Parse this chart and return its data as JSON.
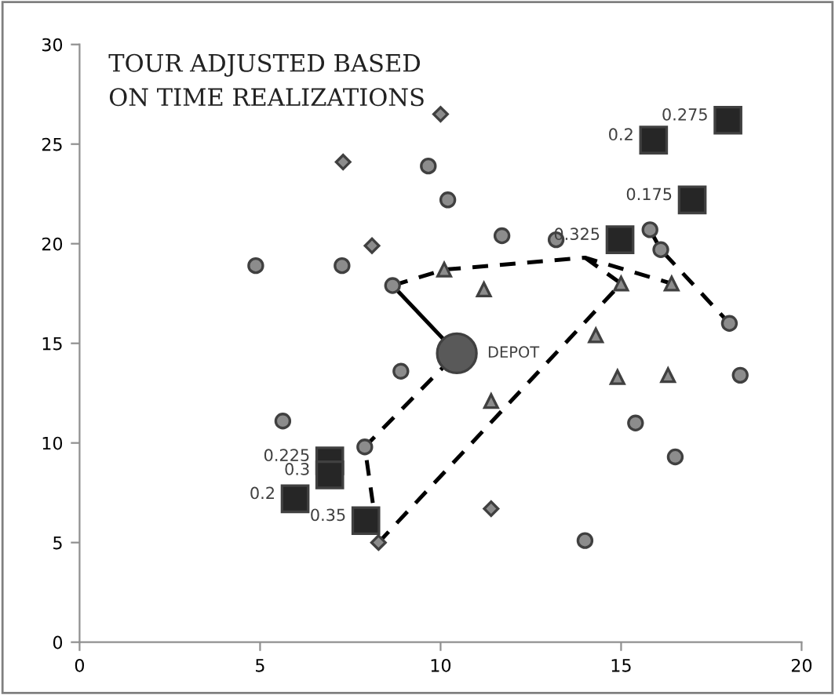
{
  "chart_data": {
    "type": "scatter",
    "title": "TOUR ADJUSTED BASED\nON TIME REALIZATIONS",
    "xlim": [
      0,
      20
    ],
    "xticks": [
      0,
      5,
      10,
      15,
      20
    ],
    "ylim": [
      0,
      30
    ],
    "yticks": [
      0,
      5,
      10,
      15,
      20,
      25,
      30
    ],
    "grid": false,
    "legend": false,
    "series": [
      {
        "type": "line",
        "color": "#000000",
        "line_style": "solid",
        "marker": "none",
        "x": [
          10.45,
          8.67
        ],
        "values": [
          14.5,
          17.9
        ]
      },
      {
        "type": "line",
        "color": "#000000",
        "line_style": "dashed",
        "marker": "none",
        "x": [
          8.67,
          10.1,
          14.0,
          16.4
        ],
        "values": [
          17.9,
          18.7,
          19.3,
          18.0
        ]
      },
      {
        "type": "line",
        "color": "#000000",
        "line_style": "dashed",
        "marker": "none",
        "x": [
          14.0,
          15.0,
          8.28,
          7.9,
          10.45
        ],
        "values": [
          19.3,
          18.0,
          5.0,
          9.8,
          14.5
        ]
      },
      {
        "type": "line",
        "color": "#000000",
        "line_style": "dashed",
        "marker": "none",
        "x": [
          15.8,
          16.1,
          18.0
        ],
        "values": [
          20.7,
          19.7,
          16.0
        ]
      },
      {
        "color": "#8c8c8c",
        "marker": "circle",
        "x": [
          4.88,
          7.27,
          9.66,
          10.2,
          11.7,
          8.67,
          5.63,
          8.9,
          7.9,
          18.3,
          15.4,
          16.5,
          14.0,
          15.8,
          16.1,
          18.0,
          13.2
        ],
        "values": [
          18.9,
          18.9,
          23.9,
          22.2,
          20.4,
          17.9,
          11.1,
          13.6,
          9.8,
          13.4,
          11.0,
          9.3,
          5.1,
          20.7,
          19.7,
          16.0,
          20.2
        ]
      },
      {
        "color": "#8c8c8c",
        "marker": "diamond",
        "x": [
          10.0,
          7.3,
          8.1,
          8.28,
          11.4
        ],
        "values": [
          26.5,
          24.1,
          19.9,
          5.0,
          6.7
        ]
      },
      {
        "color": "#8c8c8c",
        "marker": "triangle",
        "x": [
          14.3,
          14.9,
          16.3,
          11.4,
          10.1,
          11.2,
          15.0,
          16.4
        ],
        "values": [
          15.4,
          13.3,
          13.4,
          12.1,
          18.7,
          17.7,
          18.0,
          18.0
        ]
      },
      {
        "color": "#262626",
        "marker": "square",
        "x": [
          17.96,
          15.9,
          16.97,
          14.97,
          6.93,
          6.93,
          5.97,
          7.93
        ],
        "values": [
          26.2,
          25.2,
          22.2,
          20.2,
          9.1,
          8.4,
          7.2,
          6.1
        ]
      },
      {
        "name": "DEPOT",
        "color": "#595959",
        "marker": "circle",
        "x": [
          10.45
        ],
        "values": [
          14.5
        ]
      }
    ],
    "annotations": [
      {
        "text": "0.275",
        "x": 17.96,
        "y": 26.2
      },
      {
        "text": "0.2",
        "x": 15.9,
        "y": 25.2
      },
      {
        "text": "0.175",
        "x": 16.97,
        "y": 22.2
      },
      {
        "text": "0.325",
        "x": 14.97,
        "y": 20.2
      },
      {
        "text": "0.225",
        "x": 6.93,
        "y": 9.1
      },
      {
        "text": "0.3",
        "x": 6.93,
        "y": 8.4
      },
      {
        "text": "0.2",
        "x": 5.97,
        "y": 7.2
      },
      {
        "text": "0.35",
        "x": 7.93,
        "y": 6.1
      }
    ]
  }
}
